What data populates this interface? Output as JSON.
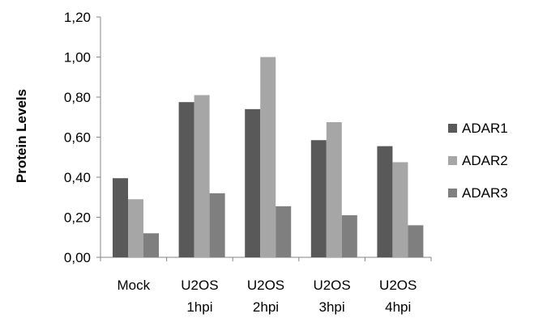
{
  "chart_data": {
    "type": "bar",
    "title": "",
    "xlabel": "",
    "ylabel": "Protein Levels",
    "ylim": [
      0,
      1.2
    ],
    "yticks": [
      "0,00",
      "0,20",
      "0,40",
      "0,60",
      "0,80",
      "1,00",
      "1,20"
    ],
    "grid": false,
    "legend_position": "right",
    "categories": [
      [
        "Mock"
      ],
      [
        "U2OS",
        "1hpi"
      ],
      [
        "U2OS",
        "2hpi"
      ],
      [
        "U2OS",
        "3hpi"
      ],
      [
        "U2OS",
        "4hpi"
      ]
    ],
    "series": [
      {
        "name": "ADAR1",
        "color": "#595959",
        "values": [
          0.395,
          0.775,
          0.74,
          0.585,
          0.555
        ]
      },
      {
        "name": "ADAR2",
        "color": "#a6a6a6",
        "values": [
          0.29,
          0.81,
          1.0,
          0.675,
          0.475
        ]
      },
      {
        "name": "ADAR3",
        "color": "#7f7f7f",
        "values": [
          0.12,
          0.32,
          0.255,
          0.21,
          0.16
        ]
      }
    ]
  }
}
